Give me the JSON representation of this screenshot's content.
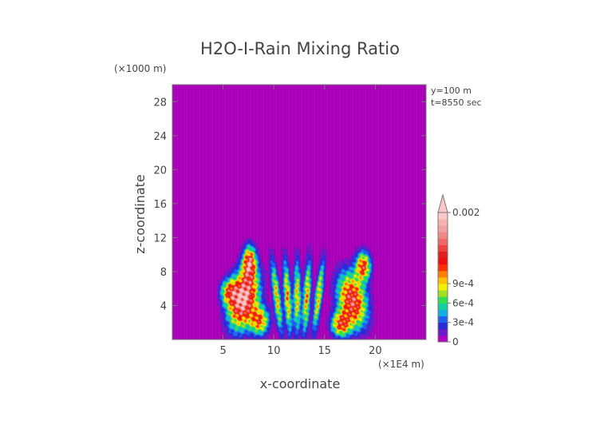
{
  "chart_data": {
    "type": "heatmap",
    "title": "H2O-I-Rain Mixing Ratio",
    "xlabel": "x-coordinate",
    "ylabel": "z-coordinate",
    "x_unit": "(×1E4 m)",
    "y_unit": "(×1000 m)",
    "annotations": [
      "y=100 m",
      "t=8550 sec"
    ],
    "xlim": [
      0,
      25
    ],
    "ylim": [
      0,
      30
    ],
    "x_ticks": [
      5,
      10,
      15,
      20
    ],
    "y_ticks": [
      4,
      8,
      12,
      16,
      20,
      24,
      28
    ],
    "colorbar": {
      "levels": [
        0,
        0.0001,
        0.0002,
        0.0003,
        0.0004,
        0.0005,
        0.0006,
        0.0007,
        0.0008,
        0.0009,
        0.001,
        0.0011,
        0.0012,
        0.0013,
        0.0014,
        0.0015,
        0.0016,
        0.0017,
        0.0018,
        0.0019,
        0.002
      ],
      "colors": [
        "#b000c0",
        "#6a1ac8",
        "#2a2ad8",
        "#2060f0",
        "#10b0e0",
        "#10d0a0",
        "#30e050",
        "#a0e020",
        "#f0f000",
        "#ffc000",
        "#ff8000",
        "#ff3000",
        "#ee1010",
        "#e02020",
        "#f04040",
        "#f06868",
        "#f08888",
        "#f0a0a0",
        "#f8b0b0",
        "#ffc8c8"
      ],
      "tick_labels": [
        "0",
        "3e-4",
        "6e-4",
        "9e-4",
        "0.002"
      ],
      "extend": "max"
    },
    "field_description_blobs": [
      {
        "name": "left-plume",
        "x_center": 7.0,
        "z_center": 5.0,
        "peak": 0.002
      },
      {
        "name": "center-columns",
        "x_center": 12.0,
        "z_center": 5.0,
        "peak": 0.0012
      },
      {
        "name": "right-plume",
        "x_center": 18.0,
        "z_center": 5.0,
        "peak": 0.0016
      }
    ]
  }
}
